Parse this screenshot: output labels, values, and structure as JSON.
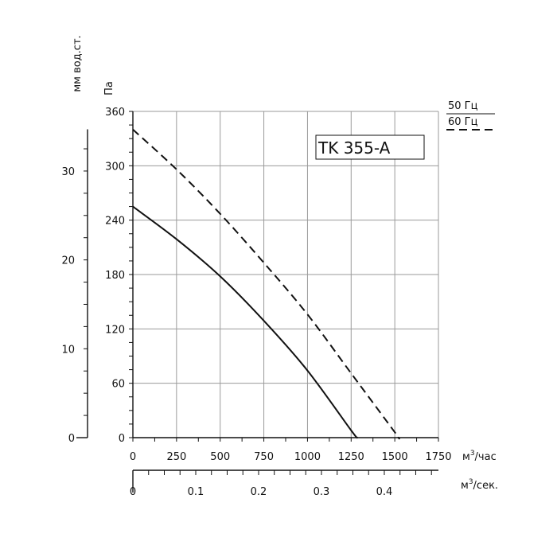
{
  "chart_data": {
    "type": "line",
    "title": "",
    "model_label": "TK 355-A",
    "x_axis": {
      "unit": "м",
      "unit_sup": "3",
      "unit_suffix": "/час",
      "range": [
        0,
        1750
      ],
      "ticks": [
        "0",
        "250",
        "500",
        "750",
        "1000",
        "1250",
        "1500",
        "1750"
      ]
    },
    "x2_axis": {
      "unit": "м",
      "unit_sup": "3",
      "unit_suffix": "/сек.",
      "ticks": [
        {
          "v": 0,
          "label": "0"
        },
        {
          "v": 0.1,
          "label": "0.1"
        },
        {
          "v": 0.2,
          "label": "0.2"
        },
        {
          "v": 0.3,
          "label": "0.3"
        },
        {
          "v": 0.4,
          "label": "0.4"
        }
      ]
    },
    "y_axis": {
      "unit": "Па",
      "range": [
        0,
        360
      ],
      "ticks": [
        "0",
        "60",
        "120",
        "180",
        "240",
        "300",
        "360"
      ]
    },
    "y2_axis": {
      "unit": "мм вод.ст.",
      "ticks": [
        {
          "v": 0,
          "label": "0"
        },
        {
          "v": 10,
          "label": "10"
        },
        {
          "v": 20,
          "label": "20"
        },
        {
          "v": 30,
          "label": "30"
        }
      ]
    },
    "grid": true,
    "legend_position": "top-right",
    "series": [
      {
        "name": "50 Гц",
        "style": "solid",
        "color": "#111111",
        "points": [
          [
            0,
            255
          ],
          [
            250,
            219
          ],
          [
            500,
            178
          ],
          [
            750,
            129
          ],
          [
            1000,
            74
          ],
          [
            1250,
            8
          ],
          [
            1285,
            0
          ]
        ]
      },
      {
        "name": "60 Гц",
        "style": "dashed",
        "color": "#111111",
        "points": [
          [
            0,
            340
          ],
          [
            250,
            296
          ],
          [
            500,
            247
          ],
          [
            750,
            193
          ],
          [
            1000,
            136
          ],
          [
            1250,
            71
          ],
          [
            1500,
            6
          ],
          [
            1520,
            0
          ]
        ]
      }
    ]
  }
}
